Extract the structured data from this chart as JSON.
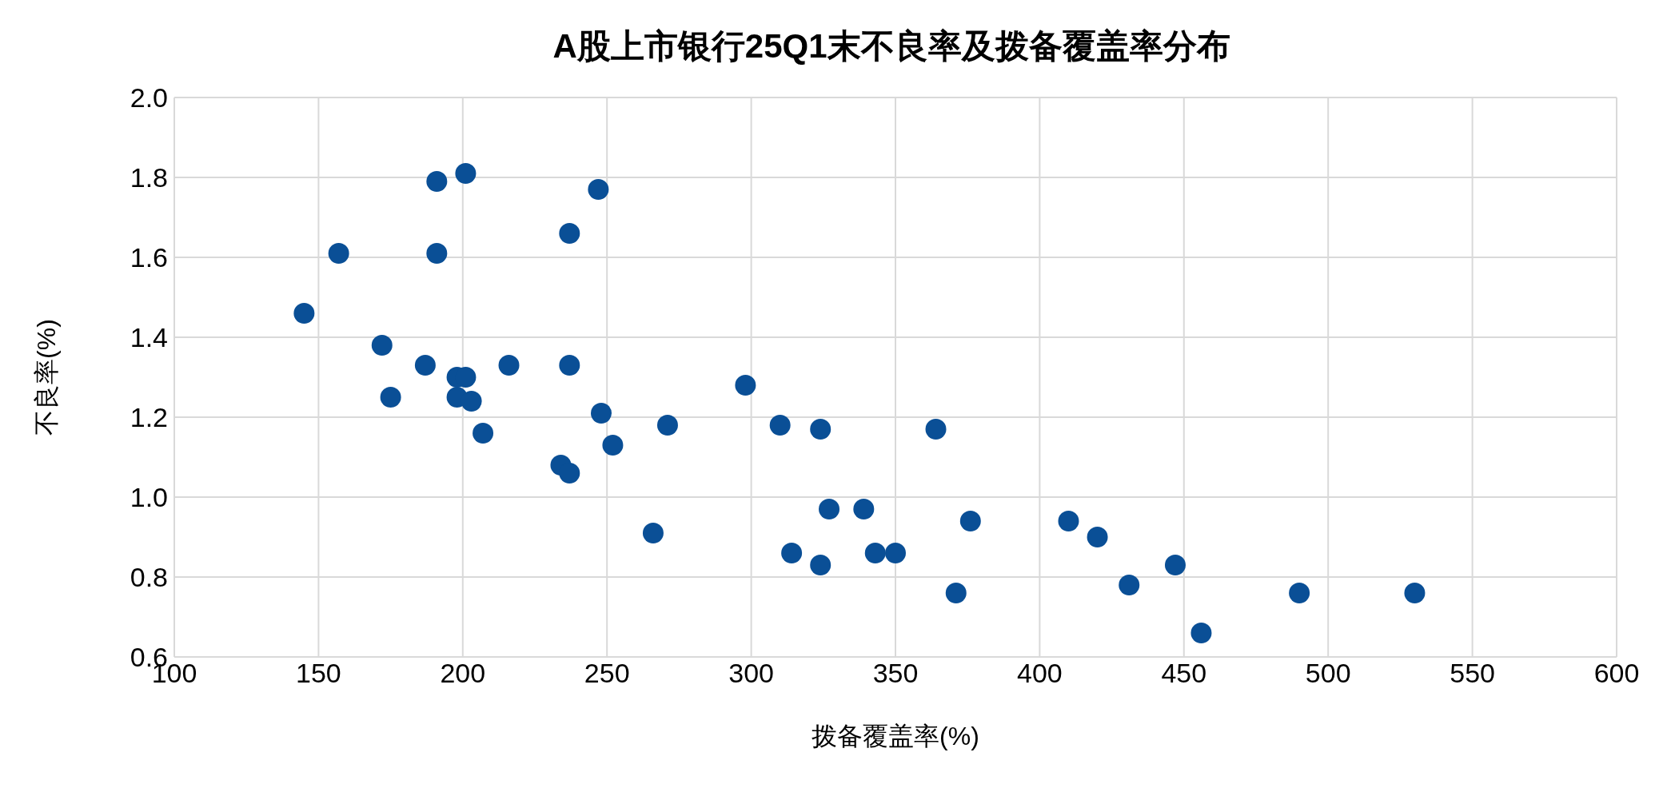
{
  "chart_data": {
    "type": "scatter",
    "title": "A股上市银行25Q1末不良率及拨备覆盖率分布",
    "xlabel": "拨备覆盖率(%)",
    "ylabel": "不良率(%)",
    "x": [
      145,
      157,
      172,
      175,
      187,
      191,
      191,
      201,
      198,
      201,
      198,
      203,
      207,
      216,
      234,
      237,
      237,
      237,
      247,
      248,
      252,
      266,
      271,
      298,
      310,
      314,
      324,
      324,
      327,
      339,
      343,
      350,
      364,
      371,
      376,
      410,
      420,
      431,
      447,
      456,
      490,
      530
    ],
    "series": [
      {
        "color": "#0a4f96",
        "values": [
          1.46,
          1.61,
          1.38,
          1.25,
          1.33,
          1.61,
          1.79,
          1.81,
          1.3,
          1.3,
          1.25,
          1.24,
          1.16,
          1.33,
          1.08,
          1.06,
          1.66,
          1.33,
          1.77,
          1.21,
          1.13,
          0.91,
          1.18,
          1.28,
          1.18,
          0.86,
          1.17,
          0.83,
          0.97,
          0.97,
          0.86,
          0.86,
          1.17,
          0.76,
          0.94,
          0.94,
          0.9,
          0.78,
          0.83,
          0.66,
          0.76,
          0.76
        ]
      }
    ],
    "xlim": [
      100,
      600
    ],
    "xticks": [
      100,
      150,
      200,
      250,
      300,
      350,
      400,
      450,
      500,
      550,
      600
    ],
    "ylim": [
      0.6,
      2.0
    ],
    "yticks": [
      {
        "value": 0.6,
        "label": "0.6"
      },
      {
        "value": 0.8,
        "label": "0.8"
      },
      {
        "value": 1.0,
        "label": "1.0"
      },
      {
        "value": 1.2,
        "label": "1.2"
      },
      {
        "value": 1.4,
        "label": "1.4"
      },
      {
        "value": 1.6,
        "label": "1.6"
      },
      {
        "value": 1.8,
        "label": "1.8"
      },
      {
        "value": 2.0,
        "label": "2.0"
      }
    ],
    "grid": true,
    "legend": false,
    "marker": "circle"
  }
}
